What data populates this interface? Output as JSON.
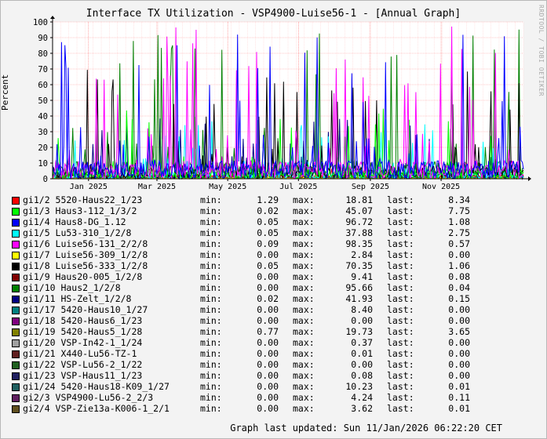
{
  "title": "Interface TX Utilization - VSP4900-Luise56-1 - [Annual Graph]",
  "side_text": "RRDTOOL / TOBI OETIKER",
  "footer": "Graph last updated: Sun 11/Jan/2026 06:22:20 CET",
  "chart_data": {
    "type": "line",
    "title": "Interface TX Utilization - VSP4900-Luise56-1 - [Annual Graph]",
    "ylabel": "Percent",
    "ylim": [
      0,
      100
    ],
    "yticks": [
      0,
      10,
      20,
      30,
      40,
      50,
      60,
      70,
      80,
      90,
      100
    ],
    "x_range": [
      "2024-12-01",
      "2026-01-11"
    ],
    "x_ticks": [
      {
        "label": "Jan 2025",
        "date": "2025-01-01"
      },
      {
        "label": "Mar 2025",
        "date": "2025-03-01"
      },
      {
        "label": "May 2025",
        "date": "2025-05-01"
      },
      {
        "label": "Jul 2025",
        "date": "2025-07-01"
      },
      {
        "label": "Sep 2025",
        "date": "2025-09-01"
      },
      {
        "label": "Nov 2025",
        "date": "2025-11-01"
      }
    ],
    "grid": true,
    "series": [
      {
        "name": "gi1/2 5520-Haus22_1/23",
        "color": "#ff0000",
        "min": "1.29",
        "max": "18.81",
        "last": "8.34"
      },
      {
        "name": "gi1/3 Haus3-112_1/3/2",
        "color": "#00ff00",
        "min": "0.02",
        "max": "45.07",
        "last": "7.75"
      },
      {
        "name": "gi1/4 Haus8-DG_1.12",
        "color": "#0000ff",
        "min": "0.05",
        "max": "96.72",
        "last": "1.08"
      },
      {
        "name": "gi1/5 Lu53-310_1/2/8",
        "color": "#00ffff",
        "min": "0.05",
        "max": "37.88",
        "last": "2.75"
      },
      {
        "name": "gi1/6 Luise56-131_2/2/8",
        "color": "#ff00ff",
        "min": "0.09",
        "max": "98.35",
        "last": "0.57"
      },
      {
        "name": "gi1/7 Luise56-309_1/2/8",
        "color": "#ffff00",
        "min": "0.00",
        "max": "2.84",
        "last": "0.00"
      },
      {
        "name": "gi1/8 Luise56-333_1/2/8",
        "color": "#000000",
        "min": "0.05",
        "max": "70.35",
        "last": "1.06"
      },
      {
        "name": "gi1/9 Haus20-005_1/2/8",
        "color": "#800000",
        "min": "0.00",
        "max": "9.41",
        "last": "0.08"
      },
      {
        "name": "gi1/10 Haus2_1/2/8",
        "color": "#008000",
        "min": "0.00",
        "max": "95.66",
        "last": "0.04"
      },
      {
        "name": "gi1/11 HS-Zelt_1/2/8",
        "color": "#000080",
        "min": "0.02",
        "max": "41.93",
        "last": "0.15"
      },
      {
        "name": "gi1/17 5420-Haus10_1/27",
        "color": "#008080",
        "min": "0.00",
        "max": "8.40",
        "last": "0.00"
      },
      {
        "name": "gi1/18 5420-Haus6_1/23",
        "color": "#800080",
        "min": "0.00",
        "max": "0.00",
        "last": "0.00"
      },
      {
        "name": "gi1/19 5420-Haus5_1/28",
        "color": "#808000",
        "min": "0.77",
        "max": "19.73",
        "last": "3.65"
      },
      {
        "name": "gi1/20 VSP-In42-1_1/24",
        "color": "#a0a0a0",
        "min": "0.00",
        "max": "0.37",
        "last": "0.00"
      },
      {
        "name": "gi1/21 X440-Lu56-TZ-1",
        "color": "#602020",
        "min": "0.00",
        "max": "0.01",
        "last": "0.00"
      },
      {
        "name": "gi1/22 VSP-Lu56-2_1/22",
        "color": "#206020",
        "min": "0.00",
        "max": "0.00",
        "last": "0.00"
      },
      {
        "name": "gi1/23 VSP-Haus11_1/23",
        "color": "#202060",
        "min": "0.00",
        "max": "0.08",
        "last": "0.00"
      },
      {
        "name": "gi1/24 5420-Haus18-K09_1/27",
        "color": "#206060",
        "min": "0.00",
        "max": "10.23",
        "last": "0.01"
      },
      {
        "name": "gi2/3 VSP4900-Lu56-2_2/3",
        "color": "#602060",
        "min": "0.00",
        "max": "4.24",
        "last": "0.11"
      },
      {
        "name": "gi2/4 VSP-Zie13a-K006-1_2/1",
        "color": "#605020",
        "min": "0.00",
        "max": "3.62",
        "last": "0.01"
      }
    ]
  },
  "legend_labels": {
    "min": "min:",
    "max": "max:",
    "last": "last:"
  }
}
